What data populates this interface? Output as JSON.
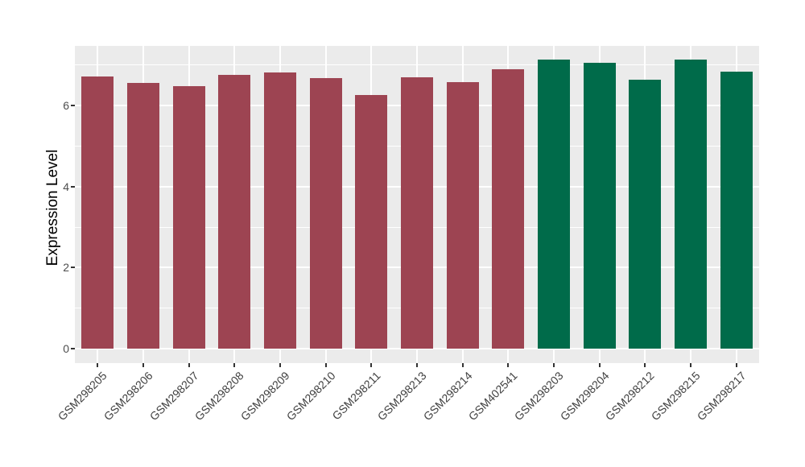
{
  "chart_data": {
    "type": "bar",
    "title": "",
    "xlabel": "",
    "ylabel": "Expression Level",
    "categories": [
      "GSM298205",
      "GSM298206",
      "GSM298207",
      "GSM298208",
      "GSM298209",
      "GSM298210",
      "GSM298211",
      "GSM298213",
      "GSM298214",
      "GSM402541",
      "GSM298203",
      "GSM298204",
      "GSM298212",
      "GSM298215",
      "GSM298217"
    ],
    "values": [
      6.71,
      6.56,
      6.47,
      6.75,
      6.82,
      6.67,
      6.27,
      6.7,
      6.57,
      6.9,
      7.13,
      7.05,
      6.64,
      7.13,
      6.84
    ],
    "bar_colors": [
      "#9D4452",
      "#9D4452",
      "#9D4452",
      "#9D4452",
      "#9D4452",
      "#9D4452",
      "#9D4452",
      "#9D4452",
      "#9D4452",
      "#9D4452",
      "#006B4A",
      "#006B4A",
      "#006B4A",
      "#006B4A",
      "#006B4A"
    ],
    "palette": [
      "#9D4452",
      "#006B4A"
    ],
    "y_ticks": [
      "0",
      "2",
      "4",
      "6"
    ],
    "y_tick_values": [
      0,
      2,
      4,
      6
    ],
    "y_minor_gridline_values": [
      1,
      3,
      5,
      7
    ],
    "ylim": [
      -0.36,
      7.48
    ],
    "x_tick_angle_deg": 45,
    "legend_position": "none",
    "grid": true,
    "panel_background": "#EBEBEB",
    "gridline_color": "#FFFFFF",
    "tick_mark_color": "#333333",
    "axis_text_color": "#4D4D4D",
    "axis_title_color": "#000000"
  }
}
